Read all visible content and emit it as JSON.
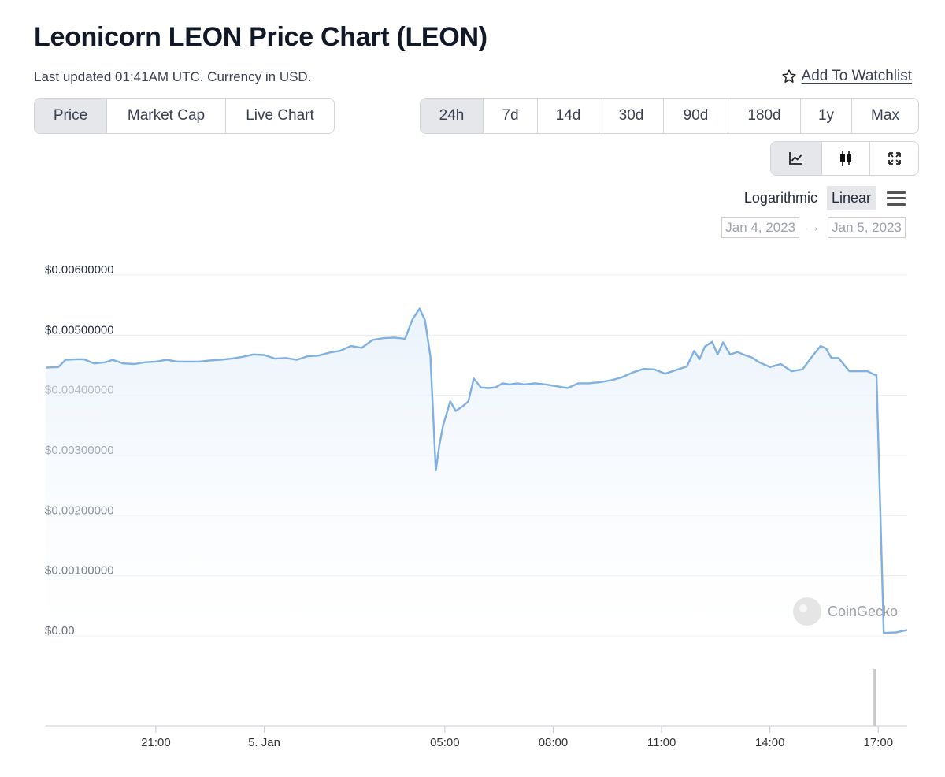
{
  "header": {
    "title": "Leonicorn LEON Price Chart (LEON)",
    "subtitle": "Last updated 01:41AM UTC. Currency in USD.",
    "watchlist_label": "Add To Watchlist"
  },
  "tabs": [
    {
      "label": "Price",
      "active": true
    },
    {
      "label": "Market Cap",
      "active": false
    },
    {
      "label": "Live Chart",
      "active": false
    }
  ],
  "ranges": [
    {
      "label": "24h",
      "active": true
    },
    {
      "label": "7d",
      "active": false
    },
    {
      "label": "14d",
      "active": false
    },
    {
      "label": "30d",
      "active": false
    },
    {
      "label": "90d",
      "active": false
    },
    {
      "label": "180d",
      "active": false
    },
    {
      "label": "1y",
      "active": false
    },
    {
      "label": "Max",
      "active": false
    }
  ],
  "chart_types": [
    "line-chart-icon",
    "candlestick-icon",
    "fullscreen-icon"
  ],
  "scale": {
    "logarithmic": "Logarithmic",
    "linear": "Linear",
    "active": "linear"
  },
  "date_range": {
    "from": "Jan 4, 2023",
    "to": "Jan 5, 2023"
  },
  "watermark": "CoinGecko",
  "colors": {
    "line": "#7fb0e0",
    "fill_top": "#e6f0fb",
    "grid": "#ececec",
    "active_bg": "#e5e7eb"
  },
  "chart_data": {
    "type": "area",
    "y_tick_labels": [
      "$0.00",
      "$0.00100000",
      "$0.00200000",
      "$0.00300000",
      "$0.00400000",
      "$0.00500000",
      "$0.00600000"
    ],
    "y_ticks": [
      0,
      0.001,
      0.002,
      0.003,
      0.004,
      0.005,
      0.006
    ],
    "ylim": [
      0,
      0.006
    ],
    "x_tick_labels": [
      "21:00",
      "5. Jan",
      "05:00",
      "08:00",
      "11:00",
      "14:00",
      "17:00"
    ],
    "x_ticks": [
      21,
      24,
      29,
      32,
      35,
      38,
      41
    ],
    "xlim": [
      17.95,
      41.8
    ],
    "x": [
      17.95,
      18.3,
      18.5,
      18.8,
      19.0,
      19.3,
      19.6,
      19.8,
      20.1,
      20.4,
      20.7,
      21.0,
      21.3,
      21.6,
      21.9,
      22.2,
      22.5,
      22.8,
      23.1,
      23.4,
      23.7,
      24.0,
      24.3,
      24.6,
      24.9,
      25.2,
      25.5,
      25.8,
      26.1,
      26.4,
      26.7,
      27.0,
      27.3,
      27.6,
      27.9,
      28.1,
      28.3,
      28.45,
      28.6,
      28.75,
      28.85,
      28.95,
      29.05,
      29.15,
      29.3,
      29.5,
      29.65,
      29.8,
      30.0,
      30.2,
      30.4,
      30.6,
      30.8,
      31.0,
      31.2,
      31.5,
      31.8,
      32.1,
      32.4,
      32.7,
      33.0,
      33.3,
      33.6,
      33.9,
      34.2,
      34.5,
      34.8,
      35.1,
      35.4,
      35.7,
      35.9,
      36.05,
      36.2,
      36.4,
      36.55,
      36.7,
      36.9,
      37.1,
      37.3,
      37.5,
      37.7,
      38.0,
      38.3,
      38.6,
      38.9,
      39.2,
      39.4,
      39.55,
      39.7,
      39.9,
      40.2,
      40.5,
      40.7,
      40.9,
      40.95,
      41.15,
      41.5,
      41.8
    ],
    "series": [
      {
        "values": [
          0.00446,
          0.00447,
          0.00459,
          0.0046,
          0.0046,
          0.00453,
          0.00455,
          0.00459,
          0.00453,
          0.00452,
          0.00455,
          0.00456,
          0.00459,
          0.00456,
          0.00456,
          0.00456,
          0.00458,
          0.00459,
          0.00461,
          0.00464,
          0.00468,
          0.00467,
          0.00461,
          0.00462,
          0.00459,
          0.00465,
          0.00466,
          0.00471,
          0.00474,
          0.00482,
          0.00479,
          0.00492,
          0.00495,
          0.00496,
          0.00494,
          0.00526,
          0.00544,
          0.00525,
          0.00465,
          0.00275,
          0.00318,
          0.0035,
          0.0037,
          0.0039,
          0.00374,
          0.00382,
          0.0039,
          0.00428,
          0.00413,
          0.00412,
          0.00413,
          0.0042,
          0.00418,
          0.0042,
          0.00418,
          0.0042,
          0.00418,
          0.00415,
          0.00412,
          0.0042,
          0.0042,
          0.00422,
          0.00425,
          0.0043,
          0.00438,
          0.00444,
          0.00443,
          0.00436,
          0.00442,
          0.00448,
          0.00474,
          0.0046,
          0.00481,
          0.00489,
          0.00468,
          0.00488,
          0.00468,
          0.00472,
          0.00467,
          0.00463,
          0.00455,
          0.00447,
          0.00452,
          0.0044,
          0.00443,
          0.00467,
          0.00482,
          0.00478,
          0.00462,
          0.00462,
          0.0044,
          0.0044,
          0.0044,
          0.00434,
          0.00434,
          5e-05,
          6e-05,
          0.0001
        ]
      }
    ],
    "volume_spike_at": 40.9
  }
}
